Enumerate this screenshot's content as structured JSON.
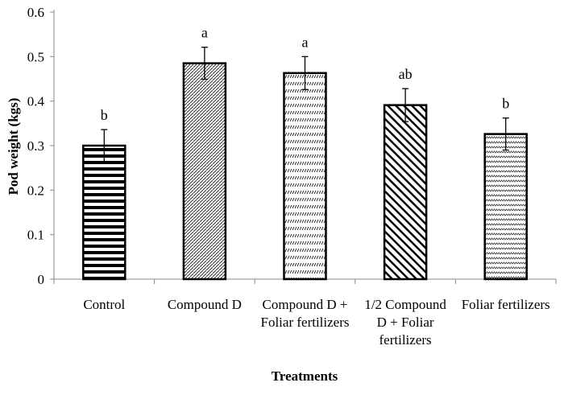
{
  "chart_data": {
    "type": "bar",
    "title": "",
    "xlabel": "Treatments",
    "ylabel": "Pod weight (kgs)",
    "ylim": [
      0,
      0.6
    ],
    "yticks": [
      "0",
      "0.1",
      "0.2",
      "0.3",
      "0.4",
      "0.5",
      "0.6"
    ],
    "grid": false,
    "categories": [
      [
        "Control"
      ],
      [
        "Compound D"
      ],
      [
        "Compound D +",
        "Foliar fertilizers"
      ],
      [
        "1/2 Compound",
        "D + Foliar",
        "fertilizers"
      ],
      [
        "Foliar fertilizers"
      ]
    ],
    "values": [
      0.3,
      0.485,
      0.463,
      0.391,
      0.326
    ],
    "errors": [
      0.036,
      0.036,
      0.037,
      0.037,
      0.036
    ],
    "letters": [
      "b",
      "a",
      "a",
      "ab",
      "b"
    ],
    "patterns": [
      "horizontal",
      "fine-diagonal",
      "dashes",
      "wide-diagonal",
      "zigzag"
    ]
  }
}
